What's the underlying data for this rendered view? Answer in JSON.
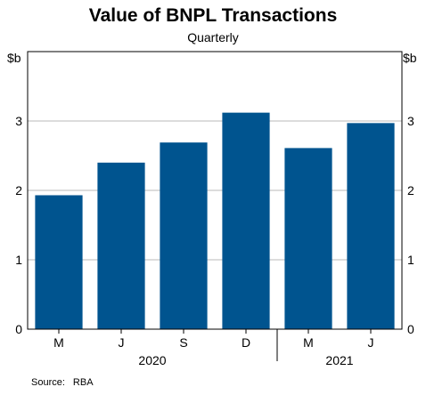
{
  "chart_data": {
    "type": "bar",
    "title": "Value of BNPL Transactions",
    "subtitle": "Quarterly",
    "categories": [
      "M",
      "J",
      "S",
      "D",
      "M",
      "J"
    ],
    "years": [
      {
        "label": "2020",
        "span": [
          0,
          3
        ]
      },
      {
        "label": "2021",
        "span": [
          4,
          5
        ]
      }
    ],
    "series": [
      {
        "values": [
          1.93,
          2.4,
          2.69,
          3.12,
          2.61,
          2.97
        ],
        "color": "#00548F"
      }
    ],
    "ylabel_left": "$b",
    "ylabel_right": "$b",
    "ylim": [
      0,
      4
    ],
    "yticks": [
      0,
      1,
      2,
      3
    ],
    "grid": true
  },
  "source": {
    "label": "Source:",
    "value": "RBA"
  }
}
